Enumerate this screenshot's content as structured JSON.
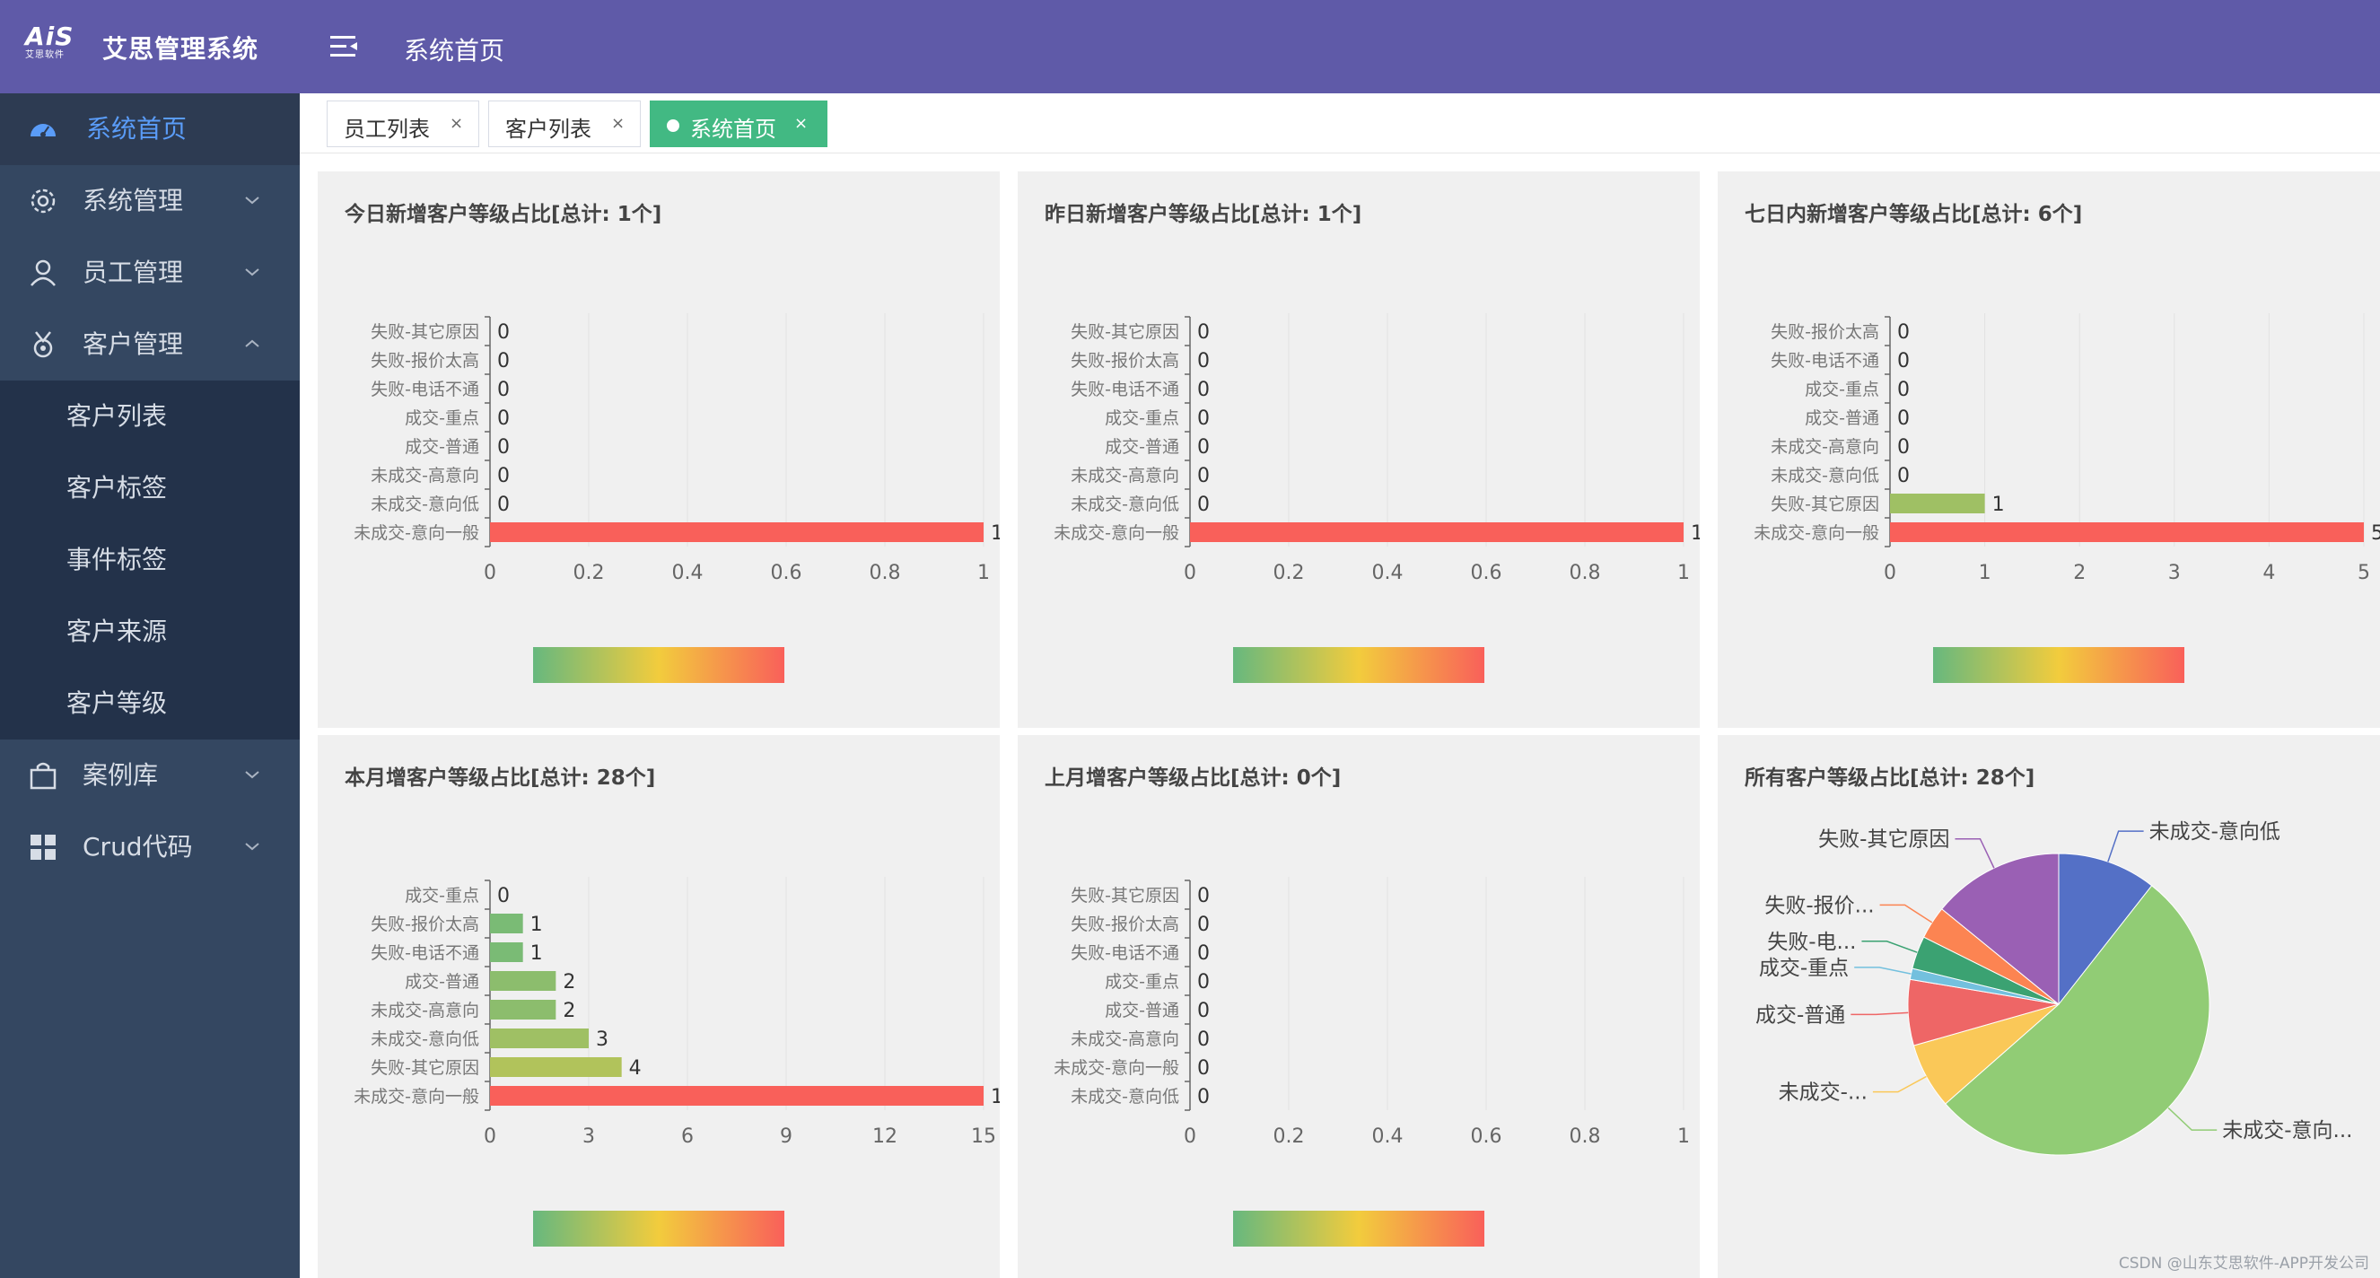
{
  "app": {
    "logo_text": "AiS",
    "logo_sub": "艾思软件",
    "title": "艾思管理系统",
    "breadcrumb": "系统首页"
  },
  "colors": {
    "header": "#5f5aa8",
    "sidebar": "#344761",
    "sidebar_sub": "#23324a",
    "active_text": "#5a9cf8",
    "tab_active": "#42b983",
    "bar_green": "#67b87e",
    "bar_yellow": "#f2cc3d",
    "bar_red": "#f9605a"
  },
  "sidebar": {
    "items": [
      {
        "label": "系统首页",
        "icon": "dashboard-icon",
        "active": true
      },
      {
        "label": "系统管理",
        "icon": "gear-icon",
        "expandable": true
      },
      {
        "label": "员工管理",
        "icon": "user-icon",
        "expandable": true
      },
      {
        "label": "客户管理",
        "icon": "medal-icon",
        "expandable": true,
        "expanded": true
      },
      {
        "label": "案例库",
        "icon": "bag-icon",
        "expandable": true
      },
      {
        "label": "Crud代码",
        "icon": "grid-icon",
        "expandable": true
      }
    ],
    "submenu": [
      "客户列表",
      "客户标签",
      "事件标签",
      "客户来源",
      "客户等级"
    ]
  },
  "tabs": [
    {
      "label": "员工列表",
      "close": "×"
    },
    {
      "label": "客户列表",
      "close": "×"
    },
    {
      "label": "系统首页",
      "close": "×",
      "active": true
    }
  ],
  "panel_titles": [
    "今日新增客户等级占比[总计: 1个]",
    "昨日新增客户等级占比[总计: 1个]",
    "七日内新增客户等级占比[总计: 6个]",
    "本月增客户等级占比[总计: 28个]",
    "上月增客户等级占比[总计: 0个]",
    "所有客户等级占比[总计: 28个]"
  ],
  "chart_data": [
    {
      "type": "bar",
      "orientation": "horizontal",
      "title": "今日新增客户等级占比[总计: 1个]",
      "categories": [
        "失败-其它原因",
        "失败-报价太高",
        "失败-电话不通",
        "成交-重点",
        "成交-普通",
        "未成交-高意向",
        "未成交-意向低",
        "未成交-意向一般"
      ],
      "values": [
        0,
        0,
        0,
        0,
        0,
        0,
        0,
        1
      ],
      "xticks": [
        "0",
        "0.2",
        "0.4",
        "0.6",
        "0.8",
        "1"
      ],
      "xlim": [
        0,
        1
      ],
      "visual_map": "green-yellow-red gradient"
    },
    {
      "type": "bar",
      "orientation": "horizontal",
      "title": "昨日新增客户等级占比[总计: 1个]",
      "categories": [
        "失败-其它原因",
        "失败-报价太高",
        "失败-电话不通",
        "成交-重点",
        "成交-普通",
        "未成交-高意向",
        "未成交-意向低",
        "未成交-意向一般"
      ],
      "values": [
        0,
        0,
        0,
        0,
        0,
        0,
        0,
        1
      ],
      "xticks": [
        "0",
        "0.2",
        "0.4",
        "0.6",
        "0.8",
        "1"
      ],
      "xlim": [
        0,
        1
      ],
      "visual_map": "green-yellow-red gradient"
    },
    {
      "type": "bar",
      "orientation": "horizontal",
      "title": "七日内新增客户等级占比[总计: 6个]",
      "categories": [
        "失败-报价太高",
        "失败-电话不通",
        "成交-重点",
        "成交-普通",
        "未成交-高意向",
        "未成交-意向低",
        "失败-其它原因",
        "未成交-意向一般"
      ],
      "values": [
        0,
        0,
        0,
        0,
        0,
        0,
        1,
        5
      ],
      "xticks": [
        "0",
        "1",
        "2",
        "3",
        "4",
        "5"
      ],
      "xlim": [
        0,
        5
      ],
      "visual_map": "green-yellow-red gradient"
    },
    {
      "type": "bar",
      "orientation": "horizontal",
      "title": "本月增客户等级占比[总计: 28个]",
      "categories": [
        "成交-重点",
        "失败-报价太高",
        "失败-电话不通",
        "成交-普通",
        "未成交-高意向",
        "未成交-意向低",
        "失败-其它原因",
        "未成交-意向一般"
      ],
      "values": [
        0,
        1,
        1,
        2,
        2,
        3,
        4,
        15
      ],
      "xticks": [
        "0",
        "3",
        "6",
        "9",
        "12",
        "15"
      ],
      "xlim": [
        0,
        15
      ],
      "visual_map": "green-yellow-red gradient"
    },
    {
      "type": "bar",
      "orientation": "horizontal",
      "title": "上月增客户等级占比[总计: 0个]",
      "categories": [
        "失败-其它原因",
        "失败-报价太高",
        "失败-电话不通",
        "成交-重点",
        "成交-普通",
        "未成交-高意向",
        "未成交-意向一般",
        "未成交-意向低"
      ],
      "values": [
        0,
        0,
        0,
        0,
        0,
        0,
        0,
        0
      ],
      "xticks": [
        "0",
        "0.2",
        "0.4",
        "0.6",
        "0.8",
        "1"
      ],
      "xlim": [
        0,
        1
      ],
      "visual_map": "green-yellow-red gradient"
    },
    {
      "type": "pie",
      "title": "所有客户等级占比[总计: 28个]",
      "slices": [
        {
          "label": "未成交-意向低",
          "value": 3,
          "color": "#5470c6"
        },
        {
          "label": "未成交-意向...",
          "value": 15,
          "color": "#91cc75"
        },
        {
          "label": "未成交-...",
          "value": 2,
          "color": "#fac858"
        },
        {
          "label": "成交-普通",
          "value": 2,
          "color": "#ee6666"
        },
        {
          "label": "成交-重点",
          "value": 0,
          "color": "#73c0de"
        },
        {
          "label": "失败-电...",
          "value": 1,
          "color": "#3ba272"
        },
        {
          "label": "失败-报价...",
          "value": 1,
          "color": "#fc8452"
        },
        {
          "label": "失败-其它原因",
          "value": 4,
          "color": "#9a60b4"
        }
      ]
    }
  ],
  "watermark": "CSDN @山东艾思软件-APP开发公司"
}
